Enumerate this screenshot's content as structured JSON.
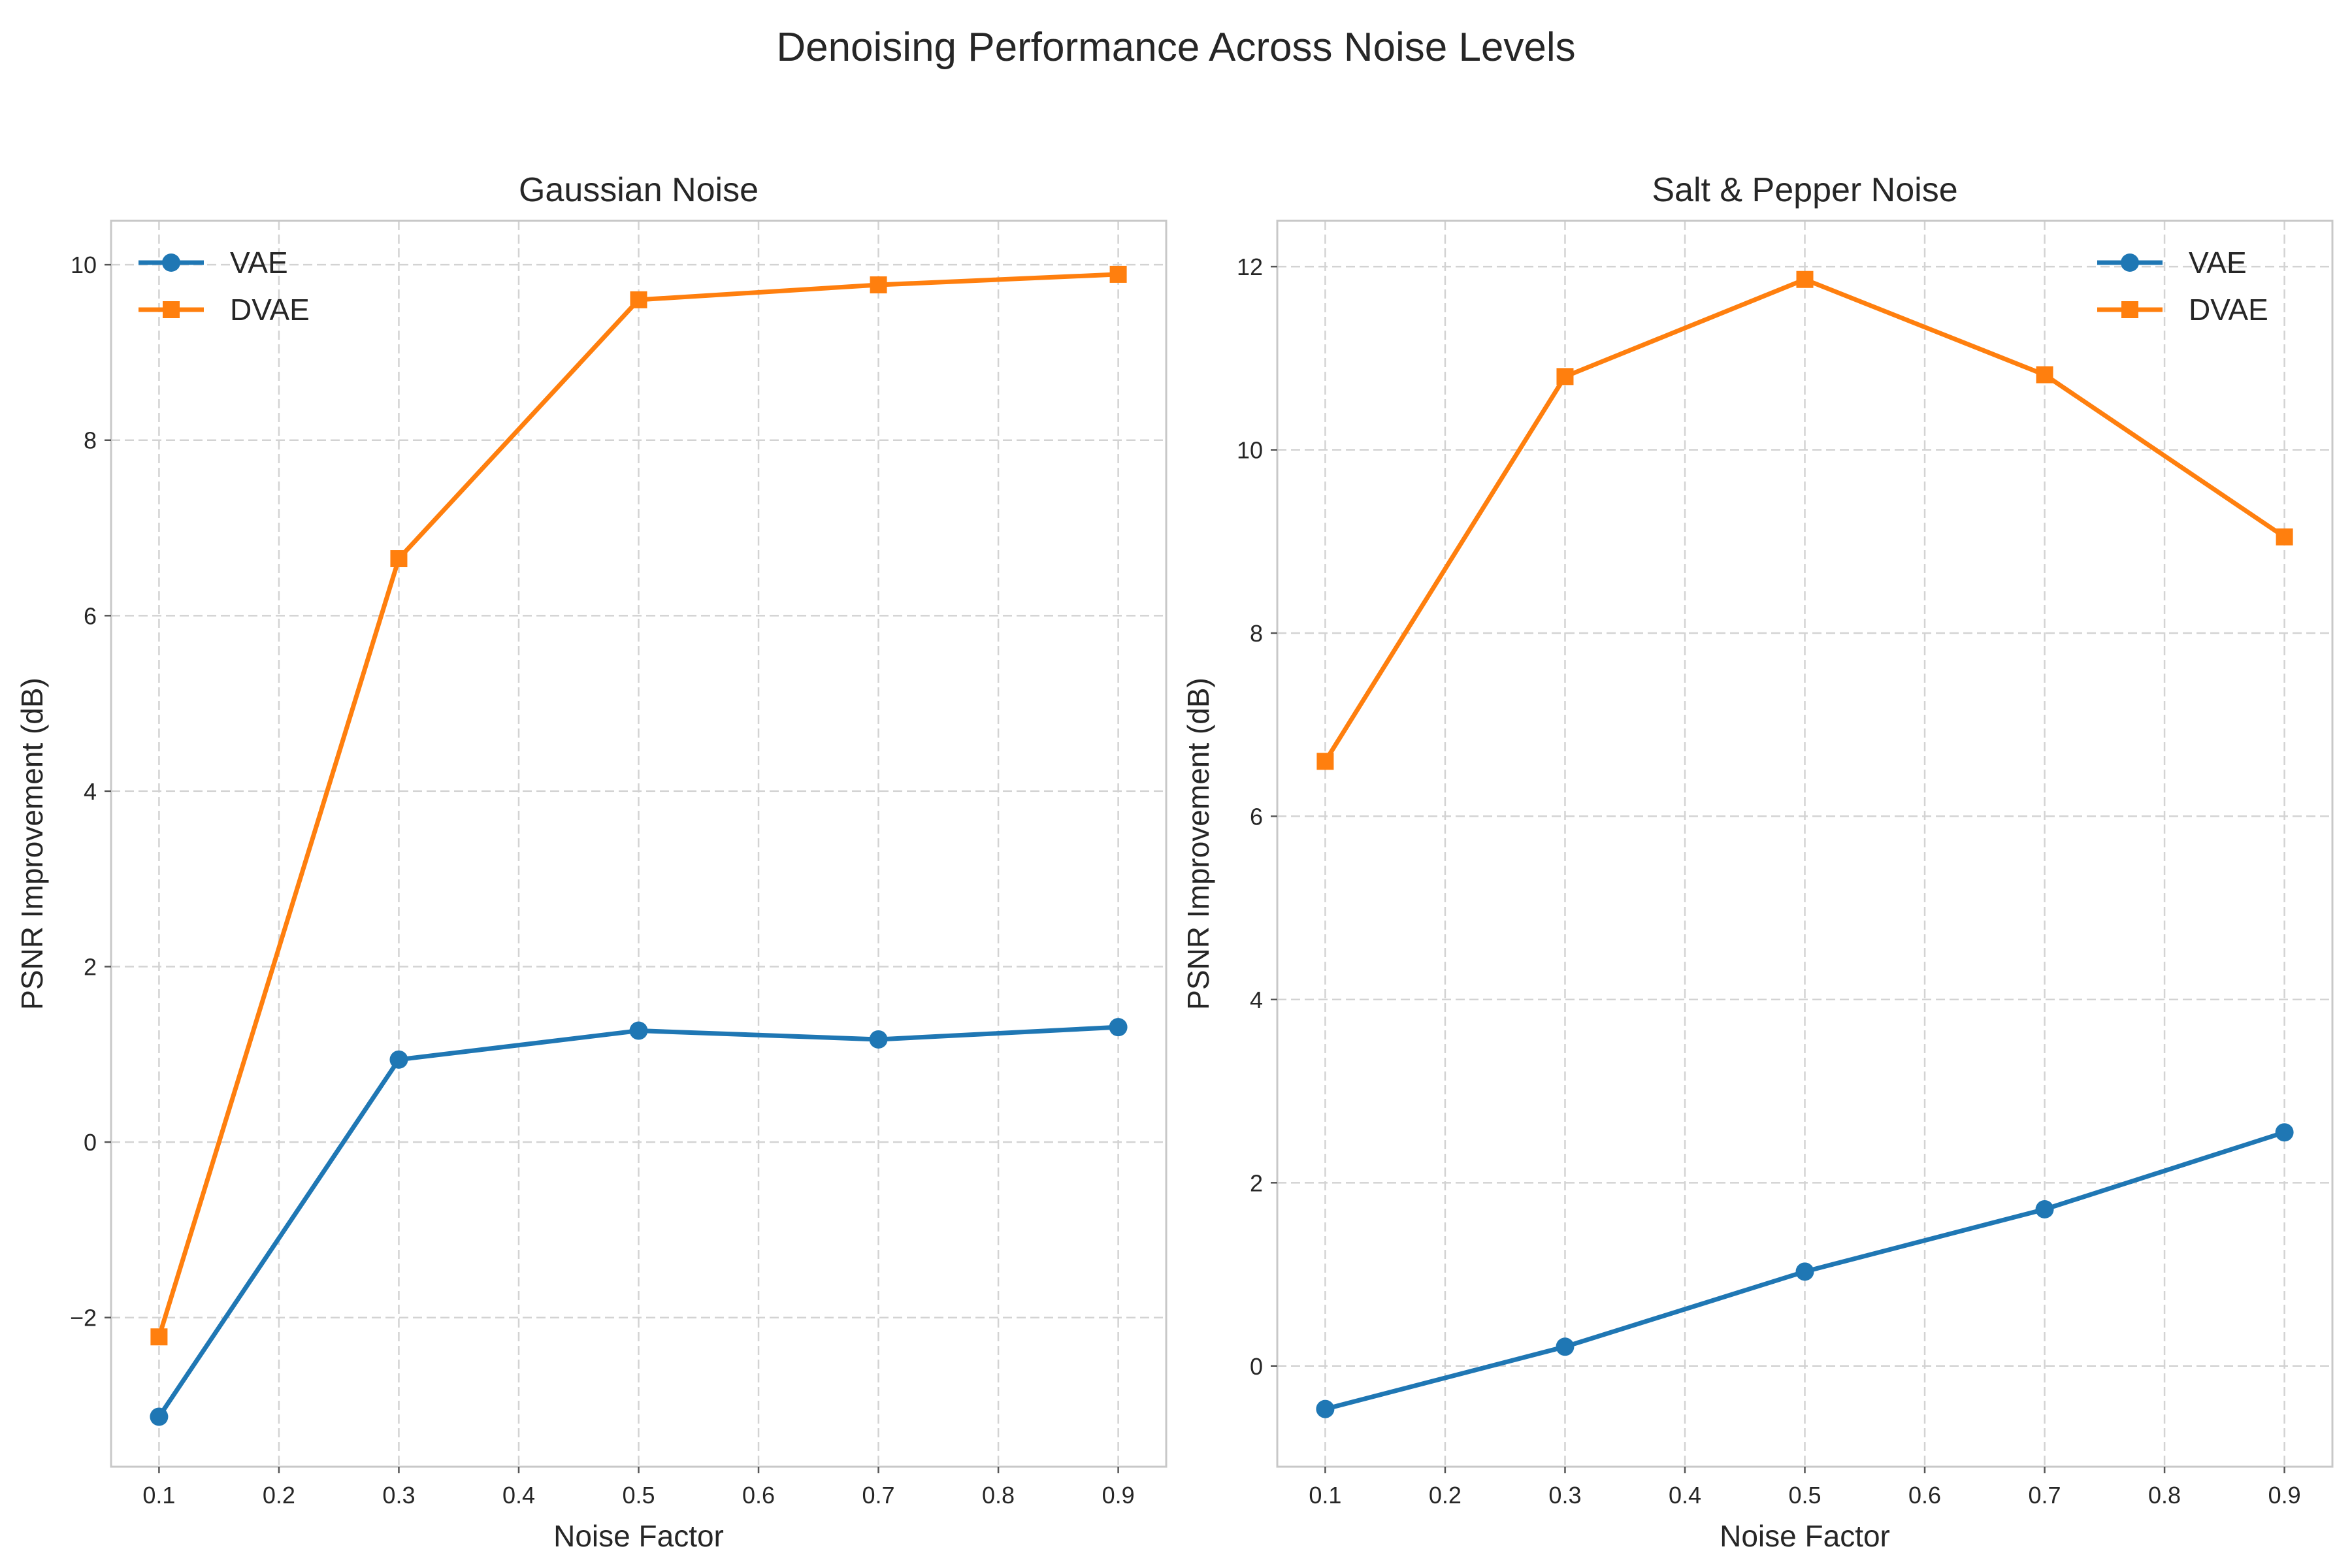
{
  "figure": {
    "title": "Denoising Performance Across Noise Levels"
  },
  "chart_data": [
    {
      "type": "line",
      "title": "Gaussian Noise",
      "xlabel": "Noise Factor",
      "ylabel": "PSNR Improvement (dB)",
      "x": [
        0.1,
        0.3,
        0.5,
        0.7,
        0.9
      ],
      "xlim": [
        0.06,
        0.94
      ],
      "ylim": [
        -3.7,
        10.5
      ],
      "xticks": [
        0.1,
        0.2,
        0.3,
        0.4,
        0.5,
        0.6,
        0.7,
        0.8,
        0.9
      ],
      "xtick_labels": [
        "0.1",
        "0.2",
        "0.3",
        "0.4",
        "0.5",
        "0.6",
        "0.7",
        "0.8",
        "0.9"
      ],
      "yticks": [
        -2,
        0,
        2,
        4,
        6,
        8,
        10
      ],
      "ytick_labels": [
        "−2",
        "0",
        "2",
        "4",
        "6",
        "8",
        "10"
      ],
      "grid": true,
      "legend_position": "top-left",
      "series": [
        {
          "name": "VAE",
          "values": [
            -3.13,
            0.94,
            1.27,
            1.17,
            1.31
          ],
          "color": "#1f77b4",
          "marker": "circle"
        },
        {
          "name": "DVAE",
          "values": [
            -2.22,
            6.65,
            9.6,
            9.77,
            9.89
          ],
          "color": "#ff7f0e",
          "marker": "square"
        }
      ]
    },
    {
      "type": "line",
      "title": "Salt & Pepper Noise",
      "xlabel": "Noise Factor",
      "ylabel": "PSNR Improvement (dB)",
      "x": [
        0.1,
        0.3,
        0.5,
        0.7,
        0.9
      ],
      "xlim": [
        0.06,
        0.94
      ],
      "ylim": [
        -1.1,
        12.5
      ],
      "xticks": [
        0.1,
        0.2,
        0.3,
        0.4,
        0.5,
        0.6,
        0.7,
        0.8,
        0.9
      ],
      "xtick_labels": [
        "0.1",
        "0.2",
        "0.3",
        "0.4",
        "0.5",
        "0.6",
        "0.7",
        "0.8",
        "0.9"
      ],
      "yticks": [
        0,
        2,
        4,
        6,
        8,
        10,
        12
      ],
      "ytick_labels": [
        "0",
        "2",
        "4",
        "6",
        "8",
        "10",
        "12"
      ],
      "grid": true,
      "legend_position": "top-right",
      "series": [
        {
          "name": "VAE",
          "values": [
            -0.47,
            0.21,
            1.03,
            1.71,
            2.55
          ],
          "color": "#1f77b4",
          "marker": "circle"
        },
        {
          "name": "DVAE",
          "values": [
            6.6,
            10.8,
            11.86,
            10.82,
            9.05
          ],
          "color": "#ff7f0e",
          "marker": "square"
        }
      ]
    }
  ]
}
